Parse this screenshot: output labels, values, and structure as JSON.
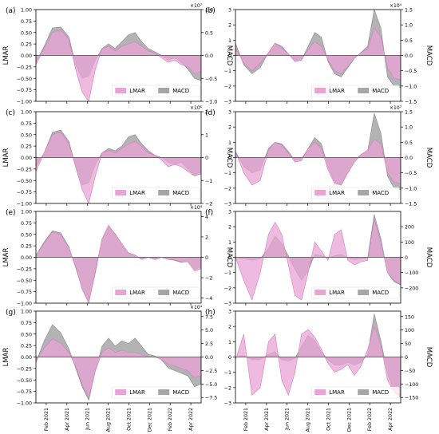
{
  "colors": {
    "lmar": "#e9a3d6",
    "macd": "#a6a6a6",
    "overlap": "#b07aa3",
    "axis": "#000000",
    "zero": "#555555"
  },
  "legend": {
    "lmar_label": "LMAR",
    "macd_label": "MACD"
  },
  "x_ticks": [
    "Feb 2021",
    "Apr 2021",
    "Jun 2021",
    "Aug 2021",
    "Oct 2021",
    "Dec 2021",
    "Feb 2022",
    "Apr 2022"
  ],
  "chart_data": [
    {
      "type": "area",
      "panel": "(a)",
      "ylabel_left": "LMAR",
      "ylabel_right": "MACD",
      "right_multiplier": "×10⁷",
      "left_ylim": [
        -1,
        1
      ],
      "left_ticks": [
        "1.00",
        "0.75",
        "0.50",
        "0.25",
        "0.00",
        "−0.25",
        "−0.50",
        "−0.75",
        "−1.00"
      ],
      "right_ylim": [
        -1,
        1
      ],
      "right_ticks": [
        "1.0",
        "0.5",
        "0.0",
        "−0.5",
        "−1.0"
      ],
      "x": [
        0,
        0.05,
        0.1,
        0.15,
        0.2,
        0.24,
        0.28,
        0.32,
        0.36,
        0.4,
        0.44,
        0.48,
        0.52,
        0.56,
        0.6,
        0.64,
        0.68,
        0.72,
        0.76,
        0.8,
        0.84,
        0.88,
        0.92,
        0.96,
        1.0
      ],
      "series": [
        {
          "name": "LMAR",
          "values": [
            -0.2,
            0.15,
            0.5,
            0.55,
            0.35,
            -0.3,
            -0.8,
            -1.0,
            -0.3,
            0.15,
            0.2,
            0.1,
            0.2,
            0.25,
            0.3,
            0.2,
            0.1,
            0.05,
            -0.05,
            -0.15,
            -0.1,
            -0.2,
            -0.25,
            -0.4,
            -0.35
          ]
        },
        {
          "name": "MACD",
          "values": [
            -0.15,
            0.2,
            0.6,
            0.62,
            0.4,
            -0.2,
            -0.5,
            -0.45,
            -0.1,
            0.15,
            0.25,
            0.15,
            0.3,
            0.45,
            0.5,
            0.3,
            0.15,
            0.08,
            0.0,
            -0.1,
            -0.05,
            -0.15,
            -0.3,
            -0.5,
            -0.55
          ]
        }
      ]
    },
    {
      "type": "area",
      "panel": "(b)",
      "ylabel_left": "",
      "ylabel_right": "MACD",
      "right_multiplier": "×10⁴",
      "left_ylim": [
        -3,
        3
      ],
      "left_ticks": [
        "3",
        "2",
        "1",
        "0",
        "−1",
        "−2",
        "−3"
      ],
      "right_ylim": [
        -1.5,
        1.5
      ],
      "right_ticks": [
        "1.5",
        "1.0",
        "0.5",
        "0.0",
        "−0.5",
        "−1.0",
        "−1.5"
      ],
      "x": [
        0,
        0.05,
        0.1,
        0.15,
        0.2,
        0.24,
        0.28,
        0.32,
        0.36,
        0.4,
        0.44,
        0.48,
        0.52,
        0.56,
        0.6,
        0.64,
        0.68,
        0.72,
        0.76,
        0.8,
        0.84,
        0.88,
        0.92,
        0.96,
        1.0
      ],
      "series": [
        {
          "name": "LMAR",
          "values": [
            0.5,
            -0.5,
            -1.0,
            -0.5,
            0.2,
            0.8,
            0.5,
            0.1,
            -0.4,
            -0.3,
            0.4,
            0.9,
            0.6,
            -0.3,
            -1.0,
            -1.2,
            -0.7,
            -0.2,
            0.2,
            0.4,
            1.8,
            1.2,
            -0.8,
            -1.5,
            -1.6
          ]
        },
        {
          "name": "MACD",
          "values": [
            0.4,
            -0.3,
            -0.6,
            -0.4,
            0.1,
            0.4,
            0.3,
            0.05,
            -0.2,
            -0.15,
            0.3,
            0.75,
            0.6,
            -0.2,
            -0.6,
            -0.7,
            -0.4,
            -0.1,
            0.1,
            0.3,
            1.5,
            0.9,
            -0.7,
            -1.0,
            -1.05
          ]
        }
      ]
    },
    {
      "type": "area",
      "panel": "(c)",
      "ylabel_left": "LMAR",
      "ylabel_right": "MACD",
      "right_multiplier": "×10⁶",
      "left_ylim": [
        -1,
        1
      ],
      "left_ticks": [
        "1.00",
        "0.75",
        "0.50",
        "0.25",
        "0.00",
        "−0.25",
        "−0.50",
        "−0.75",
        "−1.00"
      ],
      "right_ylim": [
        -2,
        2
      ],
      "right_ticks": [
        "2",
        "1",
        "0",
        "−1",
        "−2"
      ],
      "x": [
        0,
        0.05,
        0.1,
        0.15,
        0.2,
        0.24,
        0.28,
        0.32,
        0.36,
        0.4,
        0.44,
        0.48,
        0.52,
        0.56,
        0.6,
        0.64,
        0.68,
        0.72,
        0.76,
        0.8,
        0.84,
        0.88,
        0.92,
        0.96,
        1.0
      ],
      "series": [
        {
          "name": "LMAR",
          "values": [
            -0.3,
            0.1,
            0.5,
            0.55,
            0.3,
            -0.2,
            -0.7,
            -1.0,
            -0.4,
            0.1,
            0.15,
            0.1,
            0.2,
            0.3,
            0.35,
            0.25,
            0.1,
            0.05,
            -0.05,
            -0.2,
            -0.15,
            -0.2,
            -0.3,
            -0.4,
            -0.35
          ]
        },
        {
          "name": "MACD",
          "values": [
            -0.4,
            0.2,
            1.1,
            1.2,
            0.7,
            -0.4,
            -1.2,
            -1.1,
            -0.3,
            0.2,
            0.4,
            0.3,
            0.5,
            0.9,
            1.0,
            0.6,
            0.3,
            0.1,
            0.0,
            -0.2,
            -0.3,
            -0.2,
            -0.5,
            -0.8,
            -0.7
          ]
        }
      ]
    },
    {
      "type": "area",
      "panel": "(d)",
      "ylabel_left": "",
      "ylabel_right": "MACD",
      "right_multiplier": "×10⁷",
      "left_ylim": [
        -3,
        3
      ],
      "left_ticks": [
        "3",
        "2",
        "1",
        "0",
        "−1",
        "−2",
        "−3"
      ],
      "right_ylim": [
        -1.5,
        1.5
      ],
      "right_ticks": [
        "1.5",
        "1.0",
        "0.5",
        "0.0",
        "−0.5",
        "−1.0",
        "−1.5"
      ],
      "x": [
        0,
        0.05,
        0.1,
        0.15,
        0.2,
        0.24,
        0.28,
        0.32,
        0.36,
        0.4,
        0.44,
        0.48,
        0.52,
        0.56,
        0.6,
        0.64,
        0.68,
        0.72,
        0.76,
        0.8,
        0.84,
        0.88,
        0.92,
        0.96,
        1.0
      ],
      "series": [
        {
          "name": "LMAR",
          "values": [
            0.4,
            -1.0,
            -1.8,
            -1.5,
            0.5,
            1.0,
            0.8,
            0.3,
            -0.3,
            -0.2,
            0.6,
            1.0,
            0.6,
            -0.8,
            -1.7,
            -1.8,
            -1.0,
            -0.3,
            0.2,
            0.5,
            1.2,
            0.9,
            -1.0,
            -1.6,
            -1.7
          ]
        },
        {
          "name": "MACD",
          "values": [
            0.2,
            -0.3,
            -0.5,
            -0.4,
            0.3,
            0.5,
            0.45,
            0.2,
            -0.1,
            -0.05,
            0.3,
            0.65,
            0.45,
            -0.3,
            -0.8,
            -0.9,
            -0.5,
            -0.1,
            0.1,
            0.2,
            1.45,
            0.8,
            -0.6,
            -1.0,
            -1.05
          ]
        }
      ]
    },
    {
      "type": "area",
      "panel": "(e)",
      "ylabel_left": "LMAR",
      "ylabel_right": "MACD",
      "right_multiplier": "×10⁴",
      "left_ylim": [
        -1,
        1
      ],
      "left_ticks": [
        "1.00",
        "0.75",
        "0.50",
        "0.25",
        "0.00",
        "−0.25",
        "−0.50",
        "−0.75",
        "−1.00"
      ],
      "right_ylim": [
        -4.5,
        4.5
      ],
      "right_ticks": [
        "4",
        "2",
        "0",
        "−2",
        "−4"
      ],
      "x": [
        0,
        0.05,
        0.1,
        0.15,
        0.2,
        0.24,
        0.28,
        0.32,
        0.36,
        0.4,
        0.44,
        0.48,
        0.52,
        0.56,
        0.6,
        0.64,
        0.68,
        0.72,
        0.76,
        0.8,
        0.84,
        0.88,
        0.92,
        0.96,
        1.0
      ],
      "series": [
        {
          "name": "LMAR",
          "values": [
            0.05,
            0.3,
            0.55,
            0.5,
            0.2,
            -0.2,
            -0.7,
            -1.0,
            -0.3,
            0.4,
            0.7,
            0.5,
            0.3,
            0.1,
            0.05,
            -0.05,
            0.0,
            -0.05,
            0.0,
            -0.05,
            -0.05,
            -0.1,
            -0.1,
            -0.3,
            -0.25
          ]
        },
        {
          "name": "MACD",
          "values": [
            0.2,
            1.5,
            2.6,
            2.4,
            1.0,
            -1.0,
            -3.0,
            -4.4,
            -1.5,
            1.8,
            3.0,
            2.3,
            1.3,
            0.4,
            0.2,
            -0.2,
            0.0,
            -0.2,
            0.0,
            -0.2,
            -0.3,
            -0.5,
            -0.4,
            -1.2,
            -1.0
          ]
        }
      ]
    },
    {
      "type": "area",
      "panel": "(f)",
      "ylabel_left": "",
      "ylabel_right": "MACD",
      "right_multiplier": "",
      "left_ylim": [
        -3,
        3
      ],
      "left_ticks": [
        "3",
        "2",
        "1",
        "0",
        "−1",
        "−2",
        "−3"
      ],
      "right_ylim": [
        -300,
        300
      ],
      "right_ticks": [
        "200",
        "100",
        "0",
        "−100",
        "−200"
      ],
      "x": [
        0,
        0.05,
        0.1,
        0.15,
        0.2,
        0.24,
        0.28,
        0.32,
        0.36,
        0.4,
        0.44,
        0.48,
        0.52,
        0.56,
        0.6,
        0.64,
        0.68,
        0.72,
        0.76,
        0.8,
        0.84,
        0.88,
        0.92,
        0.96,
        1.0
      ],
      "series": [
        {
          "name": "LMAR",
          "values": [
            0.0,
            -1.5,
            -2.8,
            -1.0,
            1.5,
            2.3,
            1.5,
            -0.5,
            -2.5,
            -2.8,
            -1.0,
            1.0,
            0.4,
            -0.2,
            1.5,
            1.8,
            -0.2,
            -0.5,
            -0.3,
            -0.2,
            2.5,
            1.0,
            -1.0,
            -1.5,
            -1.8
          ]
        },
        {
          "name": "MACD",
          "values": [
            0,
            -10,
            -20,
            -10,
            60,
            140,
            90,
            10,
            -80,
            -150,
            -90,
            20,
            10,
            -5,
            10,
            20,
            -5,
            -15,
            -10,
            -5,
            280,
            120,
            -100,
            -160,
            -180
          ]
        }
      ]
    },
    {
      "type": "area",
      "panel": "(g)",
      "ylabel_left": "LMAR",
      "ylabel_right": "",
      "right_multiplier": "×10⁴",
      "left_ylim": [
        -1,
        1
      ],
      "left_ticks": [
        "1.00",
        "0.75",
        "0.50",
        "0.25",
        "0.00",
        "−0.25",
        "−0.50",
        "−0.75",
        "−1.00"
      ],
      "right_ylim": [
        -8.5,
        8.5
      ],
      "right_ticks": [
        "7.5",
        "5.0",
        "2.5",
        "0.0",
        "−2.5",
        "−5.0",
        "−7.5"
      ],
      "x": [
        0,
        0.05,
        0.1,
        0.15,
        0.2,
        0.24,
        0.28,
        0.32,
        0.36,
        0.4,
        0.44,
        0.48,
        0.52,
        0.56,
        0.6,
        0.64,
        0.68,
        0.72,
        0.76,
        0.8,
        0.84,
        0.88,
        0.92,
        0.96,
        1.0
      ],
      "series": [
        {
          "name": "LMAR",
          "values": [
            -0.1,
            0.2,
            0.4,
            0.3,
            0.1,
            -0.2,
            -0.6,
            -0.9,
            -0.3,
            0.1,
            0.2,
            0.1,
            0.15,
            0.1,
            0.1,
            0.05,
            0.0,
            0.0,
            -0.05,
            -0.15,
            -0.2,
            -0.25,
            -0.3,
            -0.45,
            -0.4
          ]
        },
        {
          "name": "MACD",
          "values": [
            -1.0,
            3.0,
            6.0,
            4.5,
            1.5,
            -2.0,
            -5.5,
            -8.0,
            -2.5,
            2.0,
            3.5,
            2.0,
            3.0,
            2.5,
            3.5,
            2.0,
            0.5,
            0.2,
            -0.5,
            -2.0,
            -2.5,
            -3.0,
            -3.5,
            -5.5,
            -5.0
          ]
        }
      ]
    },
    {
      "type": "area",
      "panel": "(h)",
      "ylabel_left": "",
      "ylabel_right": "MACD",
      "right_multiplier": "",
      "left_ylim": [
        -3,
        3
      ],
      "left_ticks": [
        "3",
        "2",
        "1",
        "0",
        "−1",
        "−2",
        "−3"
      ],
      "right_ylim": [
        -170,
        170
      ],
      "right_ticks": [
        "150",
        "100",
        "50",
        "0",
        "−50",
        "−100",
        "−150"
      ],
      "x": [
        0,
        0.05,
        0.1,
        0.15,
        0.2,
        0.24,
        0.28,
        0.32,
        0.36,
        0.4,
        0.44,
        0.48,
        0.52,
        0.56,
        0.6,
        0.64,
        0.68,
        0.72,
        0.76,
        0.8,
        0.84,
        0.88,
        0.92,
        0.96,
        1.0
      ],
      "series": [
        {
          "name": "LMAR",
          "values": [
            -0.2,
            1.5,
            -2.5,
            -2.0,
            1.0,
            1.5,
            -1.5,
            -2.5,
            -1.0,
            1.5,
            1.8,
            1.3,
            0.5,
            -0.4,
            -1.0,
            -0.8,
            -0.5,
            -1.2,
            -0.6,
            0.5,
            2.0,
            0.8,
            -1.5,
            -2.3,
            -2.5
          ]
        },
        {
          "name": "MACD",
          "values": [
            0,
            5,
            -10,
            -10,
            10,
            20,
            -10,
            -15,
            -5,
            40,
            80,
            60,
            20,
            -10,
            -30,
            -30,
            -20,
            -30,
            -20,
            10,
            160,
            60,
            -60,
            -130,
            -150
          ]
        }
      ]
    }
  ]
}
